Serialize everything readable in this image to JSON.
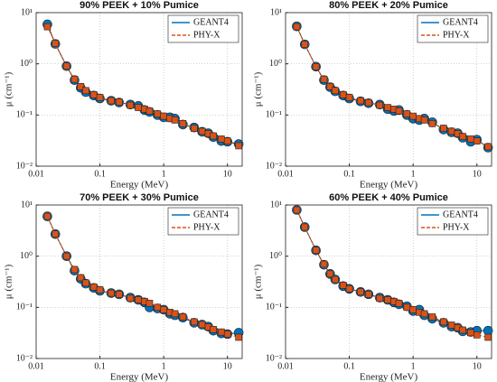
{
  "chart_data": [
    {
      "type": "line",
      "title": "90% PEEK + 10% Pumice",
      "xlabel": "Energy (MeV)",
      "ylabel": "μ (cm⁻¹)",
      "log_x": true,
      "log_y": true,
      "grid": true,
      "legend": "upper right",
      "x": [
        0.015,
        0.02,
        0.03,
        0.04,
        0.05,
        0.06,
        0.08,
        0.1,
        0.15,
        0.2,
        0.3,
        0.4,
        0.5,
        0.6,
        0.8,
        1,
        1.25,
        1.5,
        2,
        3,
        4,
        5,
        6,
        8,
        10,
        15
      ],
      "xlim": [
        0.01,
        17
      ],
      "xticks": [
        0.01,
        0.1,
        1,
        10
      ],
      "ylim": [
        0.01,
        10
      ],
      "yticks": [
        {
          "value": 0.01,
          "label": "10⁻²"
        },
        {
          "value": 0.1,
          "label": "10⁻¹"
        },
        {
          "value": 1,
          "label": "10⁰"
        },
        {
          "value": 10,
          "label": "10¹"
        }
      ],
      "series": [
        {
          "name": "GEANT4",
          "color": "#0072bd",
          "values": [
            5.9,
            2.45,
            0.9,
            0.48,
            0.34,
            0.28,
            0.24,
            0.21,
            0.19,
            0.175,
            0.16,
            0.15,
            0.125,
            0.115,
            0.1,
            0.09,
            0.09,
            0.085,
            0.065,
            0.057,
            0.047,
            0.044,
            0.037,
            0.031,
            0.03,
            0.027
          ]
        },
        {
          "name": "PHY-X",
          "color": "#d95319",
          "values": [
            5.3,
            2.5,
            0.9,
            0.5,
            0.36,
            0.3,
            0.25,
            0.22,
            0.19,
            0.18,
            0.155,
            0.14,
            0.13,
            0.12,
            0.105,
            0.095,
            0.085,
            0.08,
            0.068,
            0.055,
            0.048,
            0.043,
            0.039,
            0.034,
            0.031,
            0.025
          ]
        }
      ]
    },
    {
      "type": "line",
      "title": "80% PEEK + 20% Pumice",
      "xlabel": "Energy (MeV)",
      "ylabel": "μ (cm⁻¹)",
      "log_x": true,
      "log_y": true,
      "grid": true,
      "legend": "upper right",
      "x": [
        0.015,
        0.02,
        0.03,
        0.04,
        0.05,
        0.06,
        0.08,
        0.1,
        0.15,
        0.2,
        0.3,
        0.4,
        0.5,
        0.6,
        0.8,
        1,
        1.25,
        1.5,
        2,
        3,
        4,
        5,
        6,
        8,
        10,
        15
      ],
      "xlim": [
        0.01,
        17
      ],
      "xticks": [
        0.01,
        0.1,
        1,
        10
      ],
      "ylim": [
        0.01,
        10
      ],
      "yticks": [
        {
          "value": 0.01,
          "label": "10⁻²"
        },
        {
          "value": 0.1,
          "label": "10⁻¹"
        },
        {
          "value": 1,
          "label": "10⁰"
        },
        {
          "value": 10,
          "label": "10¹"
        }
      ],
      "series": [
        {
          "name": "GEANT4",
          "color": "#0072bd",
          "values": [
            5.4,
            2.4,
            0.88,
            0.48,
            0.35,
            0.29,
            0.24,
            0.21,
            0.185,
            0.17,
            0.16,
            0.13,
            0.12,
            0.125,
            0.1,
            0.085,
            0.08,
            0.085,
            0.072,
            0.052,
            0.046,
            0.044,
            0.036,
            0.03,
            0.033,
            0.023
          ]
        },
        {
          "name": "PHY-X",
          "color": "#d95319",
          "values": [
            5.3,
            2.4,
            0.88,
            0.5,
            0.36,
            0.3,
            0.25,
            0.22,
            0.19,
            0.175,
            0.155,
            0.14,
            0.13,
            0.12,
            0.105,
            0.095,
            0.085,
            0.08,
            0.068,
            0.055,
            0.048,
            0.043,
            0.038,
            0.034,
            0.031,
            0.024
          ]
        }
      ]
    },
    {
      "type": "line",
      "title": "70% PEEK + 30% Pumice",
      "xlabel": "Energy (MeV)",
      "ylabel": "μ (cm⁻¹)",
      "log_x": true,
      "log_y": true,
      "grid": true,
      "legend": "upper right",
      "x": [
        0.015,
        0.02,
        0.03,
        0.04,
        0.05,
        0.06,
        0.08,
        0.1,
        0.15,
        0.2,
        0.3,
        0.4,
        0.5,
        0.6,
        0.8,
        1,
        1.25,
        1.5,
        2,
        3,
        4,
        5,
        6,
        8,
        10,
        15
      ],
      "xlim": [
        0.01,
        17
      ],
      "xticks": [
        0.01,
        0.1,
        1,
        10
      ],
      "ylim": [
        0.01,
        10
      ],
      "yticks": [
        {
          "value": 0.01,
          "label": "10⁻²"
        },
        {
          "value": 0.1,
          "label": "10⁻¹"
        },
        {
          "value": 1,
          "label": "10⁰"
        },
        {
          "value": 10,
          "label": "10¹"
        }
      ],
      "series": [
        {
          "name": "GEANT4",
          "color": "#0072bd",
          "values": [
            6.0,
            2.7,
            1.0,
            0.52,
            0.36,
            0.29,
            0.24,
            0.21,
            0.19,
            0.18,
            0.155,
            0.14,
            0.125,
            0.1,
            0.095,
            0.09,
            0.075,
            0.07,
            0.063,
            0.05,
            0.046,
            0.042,
            0.035,
            0.031,
            0.03,
            0.032
          ]
        },
        {
          "name": "PHY-X",
          "color": "#d95319",
          "values": [
            6.0,
            2.7,
            1.0,
            0.55,
            0.38,
            0.3,
            0.25,
            0.22,
            0.19,
            0.18,
            0.15,
            0.14,
            0.13,
            0.12,
            0.1,
            0.09,
            0.08,
            0.075,
            0.065,
            0.052,
            0.046,
            0.041,
            0.037,
            0.033,
            0.03,
            0.026
          ]
        }
      ]
    },
    {
      "type": "line",
      "title": "60% PEEK + 40% Pumice",
      "xlabel": "Energy (MeV)",
      "ylabel": "μ (cm⁻¹)",
      "log_x": true,
      "log_y": true,
      "grid": true,
      "legend": "upper right",
      "x": [
        0.015,
        0.02,
        0.03,
        0.04,
        0.05,
        0.06,
        0.08,
        0.1,
        0.15,
        0.2,
        0.3,
        0.4,
        0.5,
        0.6,
        0.8,
        1,
        1.25,
        1.5,
        2,
        3,
        4,
        5,
        6,
        8,
        10,
        15
      ],
      "xlim": [
        0.01,
        17
      ],
      "xticks": [
        0.01,
        0.1,
        1,
        10
      ],
      "ylim": [
        0.01,
        10
      ],
      "yticks": [
        {
          "value": 0.01,
          "label": "10⁻²"
        },
        {
          "value": 0.1,
          "label": "10⁻¹"
        },
        {
          "value": 1,
          "label": "10⁰"
        },
        {
          "value": 10,
          "label": "10¹"
        }
      ],
      "series": [
        {
          "name": "GEANT4",
          "color": "#0072bd",
          "values": [
            8.0,
            3.7,
            1.3,
            0.68,
            0.45,
            0.35,
            0.26,
            0.23,
            0.2,
            0.18,
            0.155,
            0.14,
            0.125,
            0.115,
            0.105,
            0.085,
            0.09,
            0.07,
            0.06,
            0.05,
            0.042,
            0.04,
            0.034,
            0.033,
            0.035,
            0.035
          ]
        },
        {
          "name": "PHY-X",
          "color": "#d95319",
          "values": [
            8.0,
            3.7,
            1.3,
            0.7,
            0.45,
            0.35,
            0.27,
            0.23,
            0.2,
            0.18,
            0.15,
            0.14,
            0.13,
            0.12,
            0.1,
            0.09,
            0.08,
            0.075,
            0.065,
            0.052,
            0.045,
            0.04,
            0.036,
            0.032,
            0.029,
            0.026
          ]
        }
      ]
    }
  ]
}
